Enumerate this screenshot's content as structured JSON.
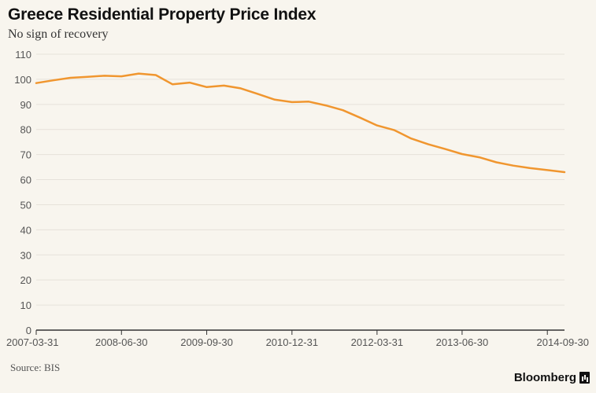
{
  "chart_data": {
    "type": "line",
    "title": "Greece Residential Property Price Index",
    "subtitle": "No sign of recovery",
    "xlabel": "",
    "ylabel": "",
    "ylim": [
      0,
      110
    ],
    "yticks": [
      0,
      10,
      20,
      30,
      40,
      50,
      60,
      70,
      80,
      90,
      100,
      110
    ],
    "xticks": [
      "2007-03-31",
      "2008-06-30",
      "2009-09-30",
      "2010-12-31",
      "2012-03-31",
      "2013-06-30",
      "2014-09-30"
    ],
    "grid": true,
    "legend": "none",
    "colors": {
      "line": "#f0962f",
      "grid": "#e6e2da",
      "axis": "#333333"
    },
    "series": [
      {
        "x": [
          "2007-03-31",
          "2007-06-30",
          "2007-09-30",
          "2007-12-31",
          "2008-03-31",
          "2008-06-30",
          "2008-09-30",
          "2008-12-31",
          "2009-03-31",
          "2009-06-30",
          "2009-09-30",
          "2009-12-31",
          "2010-03-31",
          "2010-06-30",
          "2010-09-30",
          "2010-12-31",
          "2011-03-31",
          "2011-06-30",
          "2011-09-30",
          "2011-12-31",
          "2012-03-31",
          "2012-06-30",
          "2012-09-30",
          "2012-12-31",
          "2013-03-31",
          "2013-06-30",
          "2013-09-30",
          "2013-12-31",
          "2014-03-31",
          "2014-06-30",
          "2014-09-30",
          "2014-12-31"
        ],
        "values": [
          98.5,
          99.6,
          100.6,
          101.0,
          101.4,
          101.2,
          102.3,
          101.7,
          98.0,
          98.7,
          96.9,
          97.5,
          96.4,
          94.2,
          91.9,
          90.9,
          91.1,
          89.6,
          87.7,
          84.7,
          81.6,
          79.8,
          76.4,
          74.1,
          72.2,
          70.2,
          68.9,
          66.9,
          65.6,
          64.6,
          63.8,
          63.0
        ]
      }
    ]
  },
  "footer": {
    "source": "Source: BIS",
    "brand": "Bloomberg"
  }
}
